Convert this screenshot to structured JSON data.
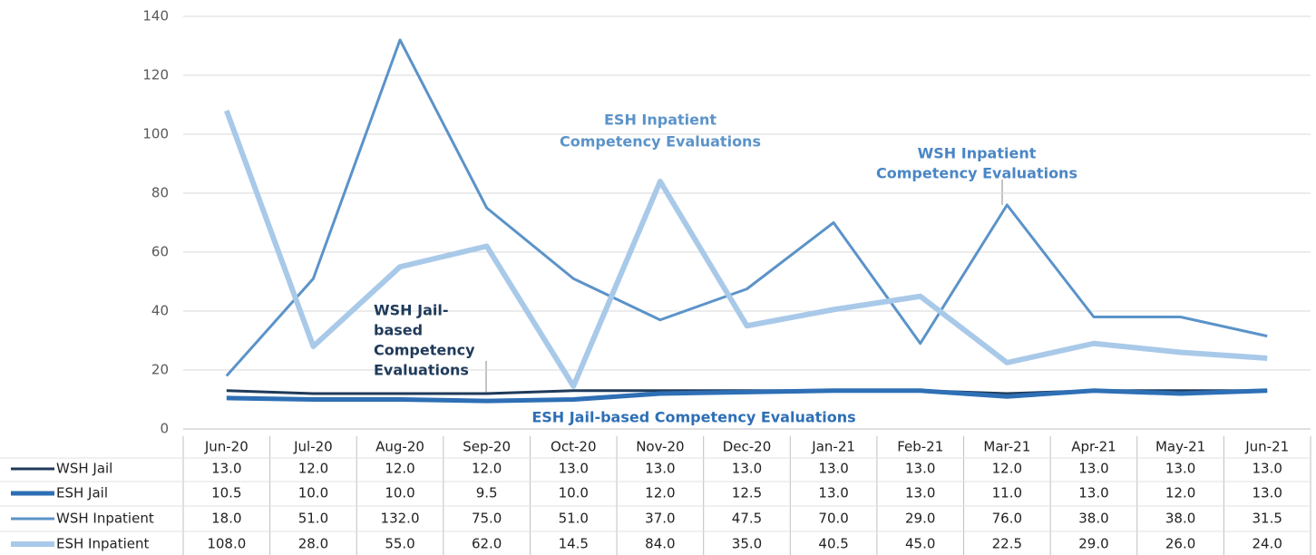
{
  "chart_data": {
    "type": "line",
    "categories": [
      "Jun-20",
      "Jul-20",
      "Aug-20",
      "Sep-20",
      "Oct-20",
      "Nov-20",
      "Dec-20",
      "Jan-21",
      "Feb-21",
      "Mar-21",
      "Apr-21",
      "May-21",
      "Jun-21"
    ],
    "series": [
      {
        "name": "WSH Jail",
        "color": "#1f3a5a",
        "width": 3,
        "values": [
          13,
          12,
          12,
          12,
          13,
          13,
          13,
          13,
          13,
          12,
          13,
          13,
          13
        ],
        "value_labels": [
          "13.0",
          "12.0",
          "12.0",
          "12.0",
          "13.0",
          "13.0",
          "13.0",
          "13.0",
          "13.0",
          "12.0",
          "13.0",
          "13.0",
          "13.0"
        ]
      },
      {
        "name": "ESH Jail",
        "color": "#2e6fb5",
        "width": 5,
        "values": [
          10.5,
          10,
          10,
          9.5,
          10,
          12,
          12.5,
          13,
          13,
          11,
          13,
          12,
          13
        ],
        "value_labels": [
          "10.5",
          "10.0",
          "10.0",
          "9.5",
          "10.0",
          "12.0",
          "12.5",
          "13.0",
          "13.0",
          "11.0",
          "13.0",
          "12.0",
          "13.0"
        ]
      },
      {
        "name": "WSH Inpatient",
        "color": "#5b93c9",
        "width": 3,
        "values": [
          18,
          51,
          132,
          75,
          51,
          37,
          47.5,
          70,
          29,
          76,
          38,
          38,
          31.5
        ],
        "value_labels": [
          "18.0",
          "51.0",
          "132.0",
          "75.0",
          "51.0",
          "37.0",
          "47.5",
          "70.0",
          "29.0",
          "76.0",
          "38.0",
          "38.0",
          "31.5"
        ]
      },
      {
        "name": "ESH Inpatient",
        "color": "#a9c9e9",
        "width": 6,
        "values": [
          108,
          28,
          55,
          62,
          14.5,
          84,
          35,
          40.5,
          45,
          22.5,
          29,
          26,
          24
        ],
        "value_labels": [
          "108.0",
          "28.0",
          "55.0",
          "62.0",
          "14.5",
          "84.0",
          "35.0",
          "40.5",
          "45.0",
          "22.5",
          "29.0",
          "26.0",
          "24.0"
        ]
      }
    ],
    "ylim": [
      0,
      140
    ],
    "yticks": [
      0,
      20,
      40,
      60,
      80,
      100,
      120,
      140
    ],
    "grid": true,
    "annotations": [
      {
        "text": [
          "ESH Inpatient",
          "Competency Evaluations"
        ],
        "color": "#5b93c9"
      },
      {
        "text": [
          "WSH Inpatient",
          "Competency Evaluations"
        ],
        "color": "#4a86c5"
      },
      {
        "text": [
          "WSH Jail-",
          "based",
          "Competency",
          "Evaluations"
        ],
        "color": "#1f3a5a"
      },
      {
        "text": [
          "ESH Jail-based Competency Evaluations"
        ],
        "color": "#2e6fb5"
      }
    ]
  }
}
